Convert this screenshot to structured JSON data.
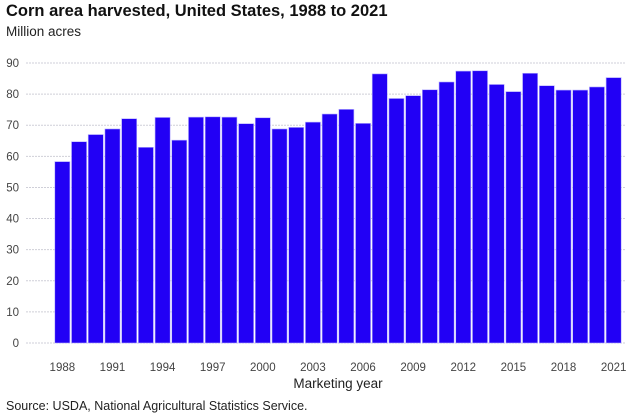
{
  "chart_data": {
    "type": "bar",
    "title": "Corn area harvested, United States, 1988 to 2021",
    "subtitle": "Million acres",
    "xlabel": "Marketing year",
    "ylabel": "Million acres",
    "source": "Source: USDA, National Agricultural Statistics Service.",
    "ylim": [
      0,
      90
    ],
    "yticks": [
      "0",
      "10",
      "20",
      "30",
      "40",
      "50",
      "60",
      "70",
      "80",
      "90"
    ],
    "xtick_labels": [
      "1988",
      "1991",
      "1994",
      "1997",
      "2000",
      "2003",
      "2006",
      "2009",
      "2012",
      "2015",
      "2018",
      "2021"
    ],
    "grid": true,
    "bar_color": "#2200f5",
    "categories": [
      "1988",
      "1989",
      "1990",
      "1991",
      "1992",
      "1993",
      "1994",
      "1995",
      "1996",
      "1997",
      "1998",
      "1999",
      "2000",
      "2001",
      "2002",
      "2003",
      "2004",
      "2005",
      "2006",
      "2007",
      "2008",
      "2009",
      "2010",
      "2011",
      "2012",
      "2013",
      "2014",
      "2015",
      "2016",
      "2017",
      "2018",
      "2019",
      "2020",
      "2021"
    ],
    "values": [
      58.3,
      64.7,
      67.0,
      68.8,
      72.1,
      62.9,
      72.5,
      65.2,
      72.6,
      72.7,
      72.6,
      70.5,
      72.4,
      68.8,
      69.3,
      71.0,
      73.6,
      75.1,
      70.6,
      86.5,
      78.6,
      79.5,
      81.4,
      83.9,
      87.4,
      87.5,
      83.1,
      80.8,
      86.7,
      82.7,
      81.3,
      81.3,
      82.3,
      85.3
    ]
  }
}
